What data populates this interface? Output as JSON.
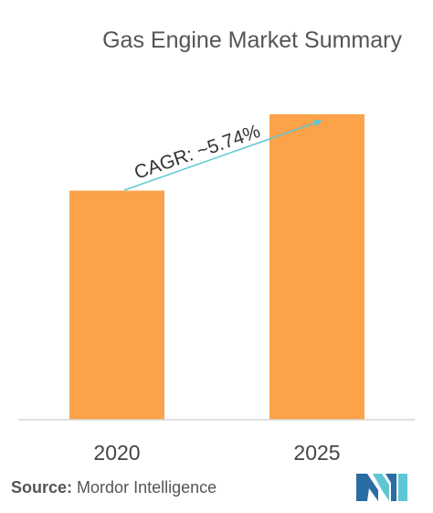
{
  "chart_data": {
    "type": "bar",
    "title": "Gas Engine Market Summary",
    "categories": [
      "2020",
      "2025"
    ],
    "values": [
      75,
      100
    ],
    "ylim": [
      0,
      100
    ],
    "bar_color": "#FBA24A",
    "annotation": {
      "text": "CAGR: ~5.74%",
      "color": "#5FC7D3"
    }
  },
  "footer": {
    "source_label": "Source:",
    "source_text": "Mordor Intelligence"
  },
  "logo": {
    "colors": [
      "#2B6CA3",
      "#5FC7D3"
    ]
  }
}
